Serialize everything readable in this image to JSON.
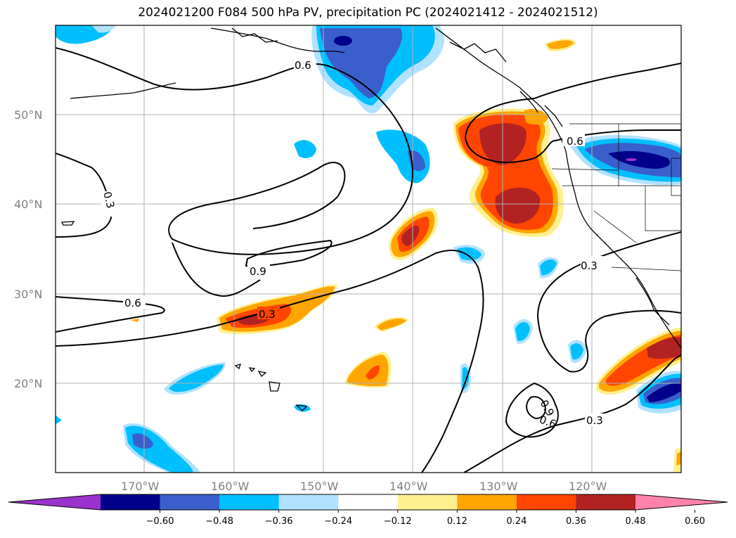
{
  "title": "2024021200 F084 500 hPa PV, precipitation PC (2024021412 - 2024021512)",
  "lat_labels": [
    "50°N",
    "40°N",
    "30°N",
    "20°N"
  ],
  "lon_labels": [
    "170°W",
    "160°W",
    "150°W",
    "140°W",
    "130°W",
    "120°W"
  ],
  "contour_labels": [
    "0.6",
    "0.6",
    "0.3",
    "0.9",
    "0.6",
    "0.3",
    "0.3",
    "0.9",
    "0.6",
    "0.3"
  ],
  "colorbar": {
    "ticks": [
      "−0.60",
      "−0.48",
      "−0.36",
      "−0.24",
      "−0.12",
      "0.12",
      "0.24",
      "0.36",
      "0.48",
      "0.60"
    ],
    "colors": [
      "#9a32cd",
      "#00008b",
      "#3a5fcd",
      "#00bfff",
      "#b0e2ff",
      "#ffffff",
      "#fff08f",
      "#ffa500",
      "#ff4500",
      "#b22222",
      "#ff82ab"
    ]
  }
}
